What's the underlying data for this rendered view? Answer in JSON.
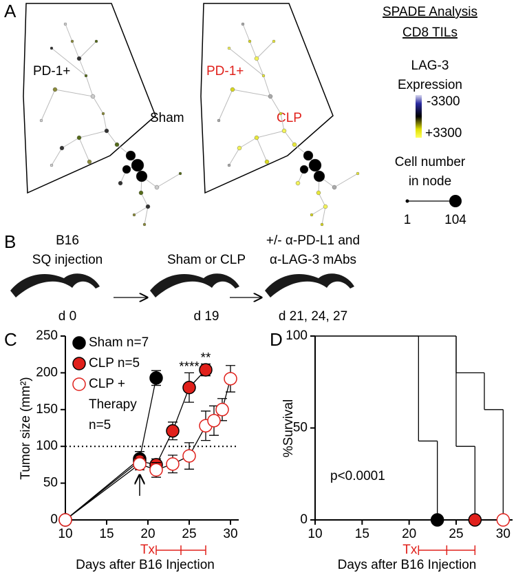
{
  "panel_a": {
    "label": "A",
    "tree_1": {
      "region": "PD-1+",
      "group": "Sham"
    },
    "tree_2": {
      "region": "PD-1+",
      "group": "CLP"
    },
    "legend": {
      "title": [
        "SPADE Analysis",
        "CD8 TILs"
      ],
      "color_title": [
        "LAG-3",
        "Expression"
      ],
      "color_low": "-3300",
      "color_high": "+3300",
      "size_title": [
        "Cell number",
        "in node"
      ],
      "size_low": "1",
      "size_high": "104"
    }
  },
  "panel_b": {
    "label": "B",
    "steps": [
      {
        "title": [
          "B16",
          "SQ injection"
        ],
        "day": "d 0"
      },
      {
        "title": [
          "Sham or CLP"
        ],
        "day": "d 19"
      },
      {
        "title": [
          "+/- α-PD-L1 and",
          "α-LAG-3 mAbs"
        ],
        "day": "d 21, 24, 27"
      }
    ]
  },
  "chart_data": [
    {
      "type": "line",
      "label": "C",
      "ylabel": "Tumor size (mm²)",
      "xlabel": "Days after B16 Injection",
      "xlim": [
        10,
        31
      ],
      "xticks": [
        10,
        15,
        20,
        25,
        30
      ],
      "ylim": [
        0,
        250
      ],
      "yticks": [
        0,
        50,
        100,
        150,
        200,
        250
      ],
      "hline": 100,
      "treatment_label": "Tx",
      "treatment_days": [
        21,
        24,
        27
      ],
      "significance": {
        "x": [
          25,
          27
        ],
        "labels": [
          "****",
          "**"
        ]
      },
      "series": [
        {
          "name": "Sham n=7",
          "color": "#000000",
          "fill": "#000000",
          "x": [
            10,
            19,
            21
          ],
          "values": [
            0,
            83,
            193
          ],
          "errors": [
            0,
            10,
            10
          ]
        },
        {
          "name": "CLP n=5",
          "color": "#000000",
          "fill": "#e0201b",
          "x": [
            10,
            19,
            21,
            23,
            25,
            27
          ],
          "values": [
            0,
            80,
            75,
            121,
            180,
            204
          ],
          "errors": [
            0,
            8,
            8,
            12,
            20,
            8
          ]
        },
        {
          "name": "CLP + Therapy n=5",
          "color": "#e0201b",
          "fill": "#ffffff",
          "x": [
            10,
            19,
            21,
            23,
            25,
            27,
            28,
            29,
            30
          ],
          "values": [
            0,
            76,
            68,
            76,
            87,
            128,
            135,
            150,
            192
          ],
          "errors": [
            0,
            8,
            10,
            12,
            18,
            20,
            20,
            15,
            18
          ]
        }
      ]
    },
    {
      "type": "step",
      "label": "D",
      "ylabel": "%Survival",
      "xlabel": "Days after B16 Injection",
      "annotation": "p<0.0001",
      "xlim": [
        10,
        31
      ],
      "xticks": [
        10,
        15,
        20,
        25,
        30
      ],
      "ylim": [
        0,
        100
      ],
      "yticks": [
        0,
        50,
        100
      ],
      "treatment_label": "Tx",
      "treatment_days": [
        21,
        24,
        27
      ],
      "series": [
        {
          "color": "#000000",
          "fill": "#000000",
          "x": [
            10,
            21,
            23
          ],
          "values": [
            100,
            42.9,
            0
          ]
        },
        {
          "color": "#000000",
          "fill": "#e0201b",
          "x": [
            10,
            25,
            27
          ],
          "values": [
            100,
            40,
            0
          ]
        },
        {
          "color": "#e0201b",
          "fill": "#ffffff",
          "x": [
            10,
            25,
            28,
            30
          ],
          "values": [
            100,
            80,
            60,
            0
          ]
        }
      ]
    }
  ]
}
